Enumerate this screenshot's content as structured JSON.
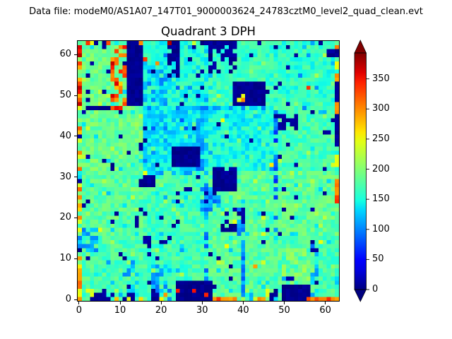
{
  "header": {
    "datafile": "Data file: modeM0/AS1A07_147T01_9000003624_24783cztM0_level2_quad_clean.evt"
  },
  "colors": {
    "figure_bg": "#ffffff",
    "spine": "#000000",
    "under_arrow": "#000080",
    "over_arrow": "#800000"
  },
  "chart_data": {
    "type": "heatmap",
    "title": "Quadrant 3 DPH",
    "n": 64,
    "xlabel": "",
    "ylabel": "",
    "x_ticks": [
      0,
      10,
      20,
      30,
      40,
      50,
      60
    ],
    "y_ticks": [
      0,
      10,
      20,
      30,
      40,
      50,
      60
    ],
    "xlim": [
      -0.5,
      63.5
    ],
    "ylim": [
      -0.5,
      63.5
    ],
    "colormap": "jet",
    "vmin": 0,
    "vmax": 393,
    "colorbar": {
      "ticks": [
        0,
        50,
        100,
        150,
        200,
        250,
        300,
        350
      ],
      "extend": "both"
    },
    "seed": 11,
    "module_base": [
      [
        172,
        168,
        178,
        172
      ],
      [
        178,
        168,
        178,
        182
      ],
      [
        188,
        138,
        152,
        168
      ],
      [
        188,
        152,
        165,
        162
      ]
    ],
    "noise_amp": 22,
    "speckle": {
      "green_p": 0.05,
      "green_add": [
        18,
        40
      ],
      "blue_p": 0.05,
      "blue_sub": [
        25,
        45
      ],
      "navy_p": 0.022,
      "navy_v": [
        0,
        16
      ]
    },
    "scatter": [
      [
        0,
        0,
        64,
        1,
        230,
        310,
        0.2
      ],
      [
        22,
        55,
        3,
        9,
        0,
        15,
        0.85
      ],
      [
        32,
        56,
        7,
        8,
        0,
        15,
        0.5
      ],
      [
        48,
        42,
        6,
        4,
        0,
        15,
        0.6
      ],
      [
        15,
        28,
        4,
        3,
        0,
        15,
        0.8
      ],
      [
        2,
        0,
        7,
        3,
        0,
        15,
        0.6
      ],
      [
        0,
        48,
        1,
        16,
        280,
        380,
        0.92
      ],
      [
        0,
        0,
        1,
        48,
        235,
        330,
        0.5
      ],
      [
        8,
        48,
        4,
        15,
        250,
        370,
        0.5
      ],
      [
        16,
        48,
        6,
        11,
        95,
        140,
        0.5
      ],
      [
        29,
        32,
        2,
        16,
        90,
        130,
        0.7
      ],
      [
        18,
        0,
        2,
        9,
        85,
        130,
        0.8
      ],
      [
        18,
        0,
        2,
        3,
        0,
        15,
        0.7
      ],
      [
        40,
        1,
        1,
        12,
        80,
        125,
        0.85
      ],
      [
        57,
        4,
        2,
        10,
        90,
        135,
        0.6
      ],
      [
        11,
        1,
        4,
        9,
        100,
        145,
        0.45
      ],
      [
        0,
        12,
        5,
        6,
        95,
        135,
        0.75
      ],
      [
        16,
        47,
        30,
        1,
        90,
        140,
        0.55
      ],
      [
        16,
        31,
        16,
        1,
        105,
        150,
        0.5
      ],
      [
        48,
        16,
        1,
        31,
        60,
        110,
        0.55
      ],
      [
        31,
        2,
        1,
        28,
        80,
        125,
        0.5
      ],
      [
        35,
        17,
        6,
        6,
        0,
        18,
        0.3
      ],
      [
        37,
        17,
        4,
        3,
        0,
        15,
        0.55
      ],
      [
        16,
        13,
        8,
        3,
        0,
        18,
        0.35
      ],
      [
        39,
        13,
        2,
        12,
        90,
        135,
        0.4
      ],
      [
        31,
        24,
        3,
        3,
        0,
        18,
        0.5
      ],
      [
        33,
        31,
        6,
        2,
        0,
        15,
        0.55
      ],
      [
        0,
        1,
        9,
        2,
        225,
        260,
        0.3
      ],
      [
        49,
        4,
        8,
        9,
        185,
        218,
        0.45
      ],
      [
        63,
        26,
        1,
        4,
        285,
        315,
        0.9
      ],
      [
        30,
        22,
        5,
        6,
        85,
        130,
        0.5
      ],
      [
        19,
        2,
        4,
        7,
        95,
        140,
        0.4
      ],
      [
        46,
        0,
        2,
        4,
        230,
        260,
        0.4
      ],
      [
        63,
        33,
        1,
        3,
        235,
        255,
        0.9
      ]
    ],
    "rects": [
      [
        12,
        48,
        4,
        16,
        0,
        12
      ],
      [
        38,
        48,
        8,
        6,
        0,
        12
      ],
      [
        23,
        33,
        7,
        5,
        0,
        12
      ],
      [
        33,
        27,
        6,
        5,
        0,
        14
      ],
      [
        24,
        0,
        9,
        5,
        0,
        12
      ],
      [
        50,
        0,
        7,
        4,
        0,
        12
      ],
      [
        63,
        49,
        1,
        5,
        2,
        14
      ],
      [
        63,
        38,
        1,
        8,
        2,
        14
      ],
      [
        2,
        47,
        6,
        1,
        0,
        15
      ],
      [
        8,
        47,
        3,
        1,
        315,
        360
      ],
      [
        33,
        0,
        6,
        1,
        285,
        320
      ],
      [
        56,
        0,
        5,
        1,
        285,
        330
      ],
      [
        30,
        63,
        6,
        1,
        0,
        14
      ],
      [
        61,
        60,
        3,
        2,
        0,
        15
      ]
    ],
    "points": [
      [
        63,
        62,
        305
      ],
      [
        63,
        58,
        252
      ],
      [
        63,
        57,
        248
      ],
      [
        63,
        55,
        300
      ],
      [
        63,
        54,
        288
      ],
      [
        63,
        48,
        298
      ],
      [
        63,
        47,
        295
      ],
      [
        63,
        46,
        302
      ],
      [
        62,
        33,
        240
      ],
      [
        63,
        25,
        332
      ],
      [
        63,
        24,
        340
      ],
      [
        63,
        0,
        290
      ],
      [
        62,
        0,
        300
      ],
      [
        61,
        0,
        342
      ],
      [
        40,
        49,
        302
      ],
      [
        39,
        49,
        252
      ],
      [
        40,
        50,
        248
      ],
      [
        56,
        52,
        338
      ],
      [
        16,
        59,
        335
      ],
      [
        19,
        58,
        298
      ],
      [
        15,
        63,
        300
      ],
      [
        22,
        63,
        378
      ],
      [
        28,
        63,
        232
      ],
      [
        44,
        63,
        10
      ],
      [
        35,
        63,
        8
      ],
      [
        2,
        63,
        338
      ],
      [
        3,
        63,
        248
      ],
      [
        7,
        63,
        325
      ],
      [
        10,
        62,
        300
      ],
      [
        9,
        61,
        330
      ],
      [
        4,
        63,
        8
      ],
      [
        6,
        62,
        10
      ],
      [
        2,
        51,
        8
      ],
      [
        6,
        51,
        10
      ],
      [
        35,
        44,
        250
      ],
      [
        16,
        31,
        250
      ],
      [
        5,
        17,
        248
      ],
      [
        2,
        24,
        8
      ],
      [
        6,
        34,
        6
      ],
      [
        14,
        18,
        8
      ],
      [
        14,
        19,
        10
      ],
      [
        14,
        20,
        6
      ],
      [
        26,
        27,
        8
      ],
      [
        27,
        27,
        10
      ],
      [
        38,
        19,
        245
      ],
      [
        45,
        16,
        240
      ],
      [
        47,
        33,
        260
      ],
      [
        53,
        25,
        10
      ],
      [
        49,
        16,
        8
      ],
      [
        36,
        13,
        252
      ],
      [
        59,
        14,
        250
      ],
      [
        43,
        8,
        292
      ],
      [
        28,
        2,
        352
      ],
      [
        31,
        1,
        345
      ],
      [
        24,
        2,
        348
      ],
      [
        21,
        1,
        295
      ],
      [
        20,
        0,
        255
      ],
      [
        44,
        0,
        300
      ],
      [
        45,
        0,
        288
      ],
      [
        0,
        0,
        295
      ],
      [
        9,
        0,
        278
      ],
      [
        15,
        0,
        265
      ],
      [
        34,
        0,
        338
      ],
      [
        47,
        0,
        8
      ],
      [
        47,
        1,
        6
      ],
      [
        48,
        1,
        10
      ],
      [
        11,
        0,
        8
      ],
      [
        12,
        1,
        10
      ],
      [
        13,
        0,
        8
      ],
      [
        13,
        1,
        10
      ],
      [
        0,
        20,
        300
      ],
      [
        0,
        10,
        295
      ],
      [
        0,
        5,
        290
      ],
      [
        0,
        17,
        250
      ]
    ]
  }
}
